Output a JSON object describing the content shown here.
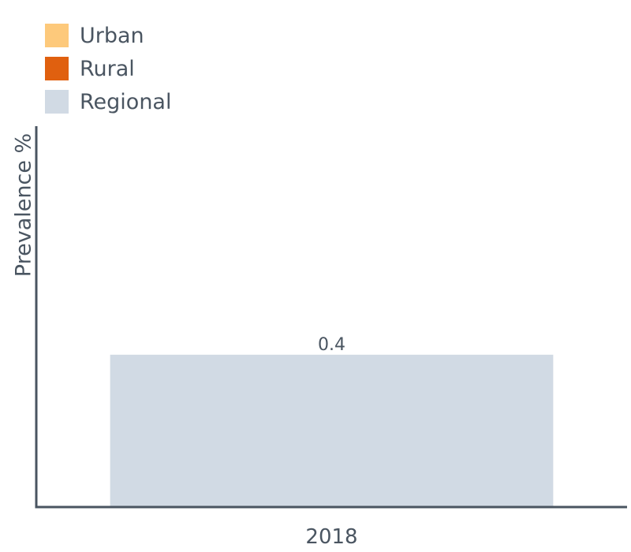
{
  "legend": {
    "items": [
      {
        "label": "Urban",
        "color": "#fdc97b"
      },
      {
        "label": "Rural",
        "color": "#e0600f"
      },
      {
        "label": "Regional",
        "color": "#d1dae4"
      }
    ]
  },
  "chart_data": {
    "type": "bar",
    "title": "",
    "xlabel": "",
    "ylabel": "Prevalence %",
    "categories": [
      "2018"
    ],
    "series": [
      {
        "name": "Regional",
        "values": [
          0.4
        ],
        "data_labels": [
          "0.4"
        ],
        "color": "#d1dae4"
      }
    ],
    "ylim": [
      0,
      1
    ],
    "grid": false,
    "legend_position": "top-left",
    "axis_color": "#4a5561"
  }
}
